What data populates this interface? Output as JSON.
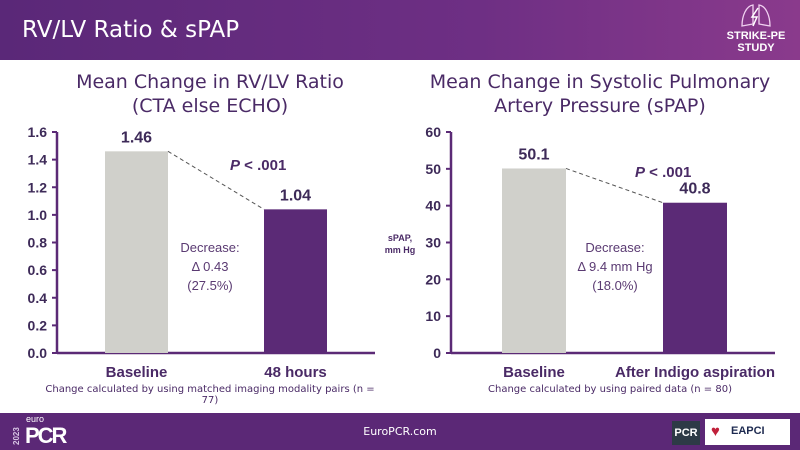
{
  "header": {
    "title": "RV/LV Ratio & sPAP",
    "logo_text": [
      "STRIKE-PE",
      "STUDY"
    ],
    "logo_icon": "lungs-lightning-icon"
  },
  "colors": {
    "baseline_bar": "#d0d0cb",
    "after_bar": "#5b2a76",
    "header": "#5a2878"
  },
  "chart_data": [
    {
      "type": "bar",
      "title": [
        "Mean Change in RV/LV Ratio",
        "(CTA else ECHO)"
      ],
      "categories": [
        "Baseline",
        "48 hours"
      ],
      "values": [
        1.46,
        1.04
      ],
      "value_labels": [
        "1.46",
        "1.04"
      ],
      "ylim": [
        0,
        1.6
      ],
      "yticks": [
        "0.0",
        "0.2",
        "0.4",
        "0.6",
        "0.8",
        "1.0",
        "1.2",
        "1.4",
        "1.6"
      ],
      "ylabel": "",
      "p_value": "P < .001",
      "annotation": [
        "Decrease:",
        "Δ 0.43",
        "(27.5%)"
      ],
      "footnote": "Change calculated by using matched imaging modality pairs (n = 77)"
    },
    {
      "type": "bar",
      "title": [
        "Mean Change in Systolic Pulmonary",
        "Artery Pressure (sPAP)"
      ],
      "categories": [
        "Baseline",
        "After Indigo aspiration"
      ],
      "values": [
        50.1,
        40.8
      ],
      "value_labels": [
        "50.1",
        "40.8"
      ],
      "ylim": [
        0,
        60
      ],
      "yticks": [
        "0",
        "10",
        "20",
        "30",
        "40",
        "50",
        "60"
      ],
      "ylabel": [
        "sPAP,",
        "mm Hg"
      ],
      "p_value": "P < .001",
      "annotation": [
        "Decrease:",
        "Δ 9.4 mm Hg",
        "(18.0%)"
      ],
      "footnote": "Change calculated by using paired data (n = 80)"
    }
  ],
  "footer": {
    "year": "2023",
    "brand_small": "euro",
    "brand": "PCR",
    "url": "EuroPCR.com",
    "partner_logos": [
      "PCR",
      "EAPCI"
    ]
  }
}
